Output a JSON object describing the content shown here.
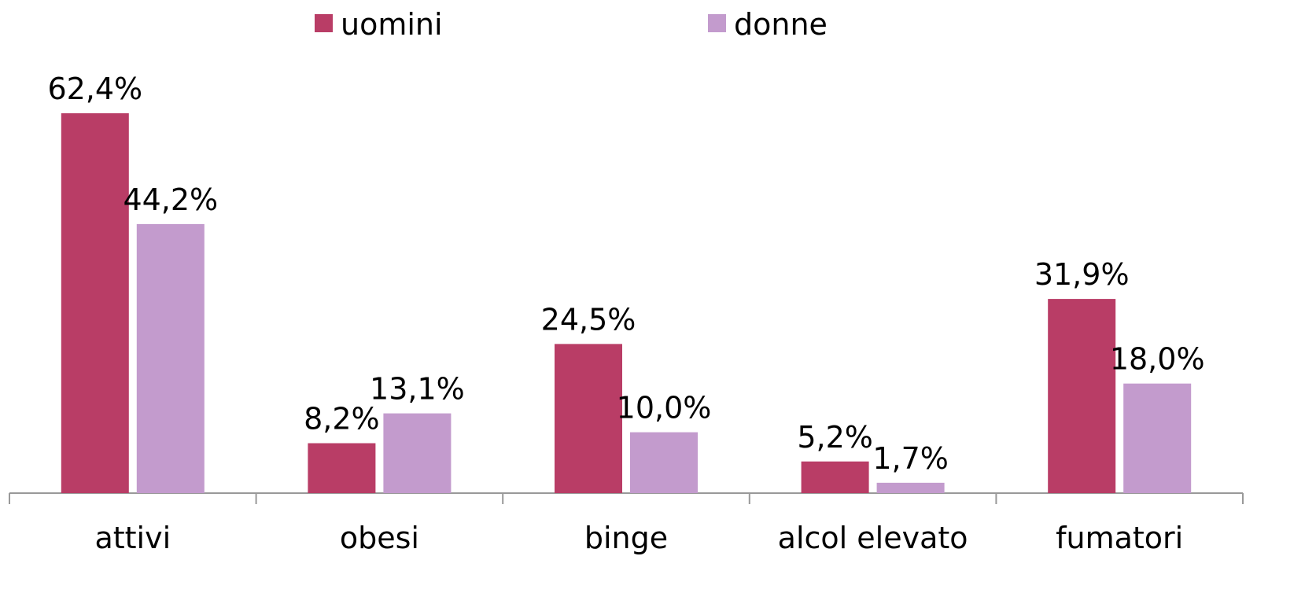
{
  "chart_data": {
    "type": "bar",
    "categories": [
      "attivi",
      "obesi",
      "binge",
      "alcol elevato",
      "fumatori"
    ],
    "series": [
      {
        "name": "uomini",
        "color": "#b93d66",
        "values": [
          62.4,
          8.2,
          24.5,
          5.2,
          31.9
        ],
        "value_labels": [
          "62,4%",
          "8,2%",
          "24,5%",
          "5,2%",
          "31,9%"
        ]
      },
      {
        "name": "donne",
        "color": "#c39bcd",
        "values": [
          44.2,
          13.1,
          10.0,
          1.7,
          18.0
        ],
        "value_labels": [
          "44,2%",
          "13,1%",
          "10,0%",
          "1,7%",
          "18,0%"
        ]
      }
    ],
    "legend": "top"
  }
}
